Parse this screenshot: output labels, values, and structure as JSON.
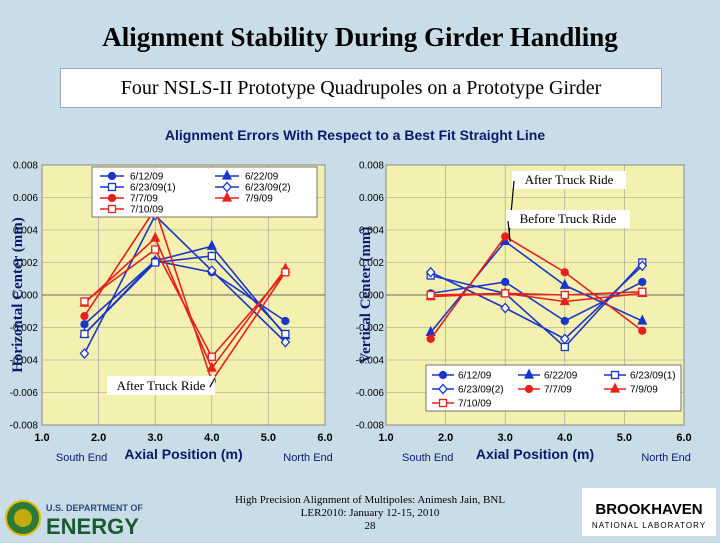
{
  "title": "Alignment Stability During Girder Handling",
  "subtitle": "Four NSLS-II Prototype Quadrupoles on a Prototype Girder",
  "footer": {
    "line1": "High Precision Alignment of Multipoles: Animesh Jain, BNL",
    "line2": "LER2010: January 12-15, 2010",
    "page": "28"
  },
  "logos": {
    "doe_top": "U.S. DEPARTMENT OF",
    "doe_bottom": "ENERGY",
    "bnl_top": "BROOKHAVEN",
    "bnl_bottom": "NATIONAL LABORATORY"
  },
  "colors": {
    "blue": "#1a36c8",
    "red": "#e8201c",
    "plot_bg": "#f3f0b0",
    "background": "#c8dde8"
  },
  "chart_data": {
    "suptitle": "Alignment Errors With Respect to a Best Fit Straight Line",
    "charts": [
      {
        "id": "horizontal",
        "type": "line",
        "xlabel": "Axial Position (m)",
        "ylabel": "Horizontal Center (mm)",
        "end_labels": [
          "South End",
          "North End"
        ],
        "xlim": [
          1.0,
          6.0
        ],
        "ylim": [
          -0.008,
          0.008
        ],
        "xticks": [
          "1.0",
          "2.0",
          "3.0",
          "4.0",
          "5.0",
          "6.0"
        ],
        "yticks": [
          "0.008",
          "0.006",
          "0.004",
          "0.002",
          "0.000",
          "-0.002",
          "-0.004",
          "-0.006",
          "-0.008"
        ],
        "x": [
          1.75,
          3.0,
          4.0,
          5.3
        ],
        "annotations": [
          "After Truck Ride"
        ],
        "legend_position": "top-left",
        "series": [
          {
            "name": "6/12/09",
            "color": "blue",
            "marker": "circle-filled",
            "values": [
              -0.0018,
              0.0021,
              0.0014,
              -0.0016
            ]
          },
          {
            "name": "6/22/09",
            "color": "blue",
            "marker": "triangle-filled",
            "values": [
              -0.0024,
              0.0021,
              0.003,
              -0.0025
            ]
          },
          {
            "name": "6/23/09(1)",
            "color": "blue",
            "marker": "square-open",
            "values": [
              -0.0024,
              0.002,
              0.0024,
              -0.0024
            ]
          },
          {
            "name": "6/23/09(2)",
            "color": "blue",
            "marker": "diamond-open",
            "values": [
              -0.0036,
              0.0049,
              0.0015,
              -0.0029
            ]
          },
          {
            "name": "7/7/09",
            "color": "red",
            "marker": "circle-filled",
            "values": [
              -0.0013,
              0.0053,
              -0.0053,
              0.0014
            ]
          },
          {
            "name": "7/9/09",
            "color": "red",
            "marker": "triangle-filled",
            "values": [
              -0.0005,
              0.0035,
              -0.0045,
              0.0016
            ]
          },
          {
            "name": "7/10/09",
            "color": "red",
            "marker": "square-open",
            "values": [
              -0.0004,
              0.0028,
              -0.0038,
              0.0014
            ]
          }
        ]
      },
      {
        "id": "vertical",
        "type": "line",
        "xlabel": "Axial Position (m)",
        "ylabel": "Vertical Center (mm)",
        "end_labels": [
          "South End",
          "North End"
        ],
        "xlim": [
          1.0,
          6.0
        ],
        "ylim": [
          -0.008,
          0.008
        ],
        "xticks": [
          "1.0",
          "2.0",
          "3.0",
          "4.0",
          "5.0",
          "6.0"
        ],
        "yticks": [
          "0.008",
          "0.006",
          "0.004",
          "0.002",
          "0.000",
          "-0.002",
          "-0.004",
          "-0.006",
          "-0.008"
        ],
        "x": [
          1.75,
          3.0,
          4.0,
          5.3
        ],
        "annotations": [
          "After Truck Ride",
          "Before Truck Ride"
        ],
        "legend_position": "bottom",
        "series": [
          {
            "name": "6/12/09",
            "color": "blue",
            "marker": "circle-filled",
            "values": [
              0.0001,
              0.0008,
              -0.0016,
              0.0008
            ]
          },
          {
            "name": "6/22/09",
            "color": "blue",
            "marker": "triangle-filled",
            "values": [
              -0.0023,
              0.0033,
              0.0006,
              -0.0016
            ]
          },
          {
            "name": "6/23/09(1)",
            "color": "blue",
            "marker": "square-open",
            "values": [
              0.0012,
              0.0001,
              -0.0032,
              0.002
            ]
          },
          {
            "name": "6/23/09(2)",
            "color": "blue",
            "marker": "diamond-open",
            "values": [
              0.0014,
              -0.0008,
              -0.0027,
              0.0018
            ]
          },
          {
            "name": "7/7/09",
            "color": "red",
            "marker": "circle-filled",
            "values": [
              -0.0027,
              0.0036,
              0.0014,
              -0.0022
            ]
          },
          {
            "name": "7/9/09",
            "color": "red",
            "marker": "triangle-filled",
            "values": [
              -0.0001,
              0.0001,
              -0.0004,
              0.0001
            ]
          },
          {
            "name": "7/10/09",
            "color": "red",
            "marker": "square-open",
            "values": [
              0.0,
              0.0001,
              0.0,
              0.0002
            ]
          }
        ]
      }
    ]
  }
}
